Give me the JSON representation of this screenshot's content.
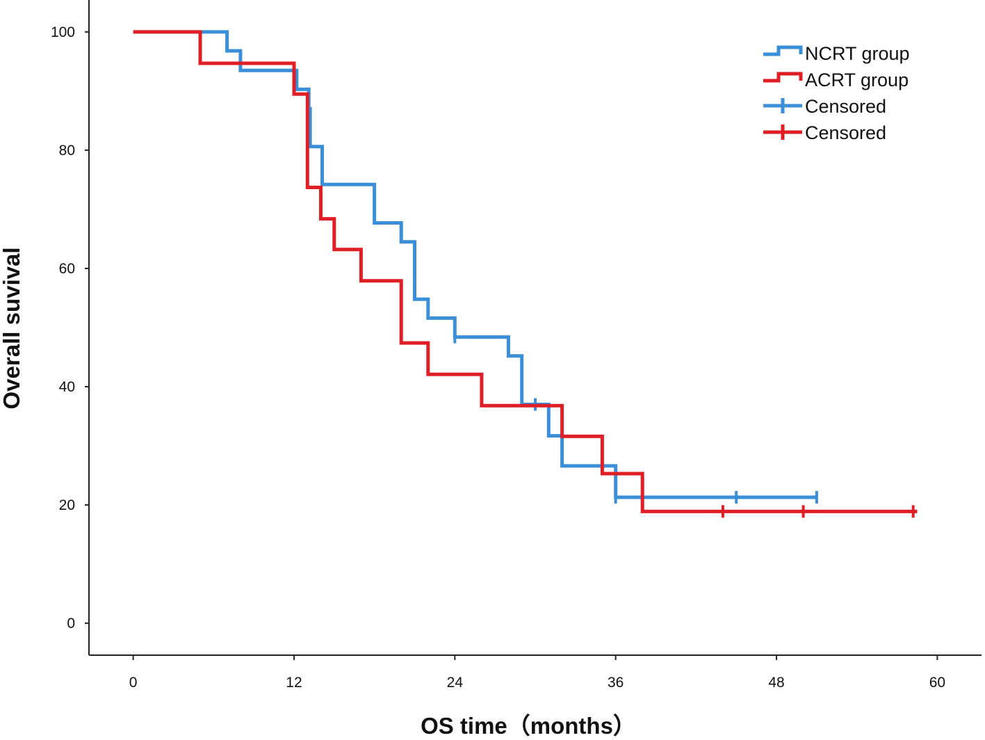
{
  "chart_data": {
    "type": "line",
    "subtype": "kaplan-meier-step",
    "xlabel": "OS time（months）",
    "ylabel": "Overall suvival",
    "xlim": [
      -3.3,
      63.3
    ],
    "ylim": [
      -5.4,
      105.4
    ],
    "x_ticks": [
      0,
      12,
      24,
      36,
      48,
      60
    ],
    "y_ticks": [
      0,
      20,
      40,
      60,
      80,
      100
    ],
    "legend_position": "top-right",
    "series": [
      {
        "name": "NCRT group",
        "color": "#3a8fd8",
        "steps": [
          [
            0,
            100
          ],
          [
            7,
            100
          ],
          [
            7,
            96.8
          ],
          [
            8,
            96.8
          ],
          [
            8,
            93.5
          ],
          [
            12.2,
            93.5
          ],
          [
            12.2,
            90.3
          ],
          [
            13.1,
            90.3
          ],
          [
            13.1,
            87
          ],
          [
            13.2,
            87
          ],
          [
            13.2,
            80.6
          ],
          [
            14.1,
            80.6
          ],
          [
            14.1,
            74.2
          ],
          [
            18,
            74.2
          ],
          [
            18,
            67.7
          ],
          [
            20,
            67.7
          ],
          [
            20,
            64.5
          ],
          [
            21,
            64.5
          ],
          [
            21,
            54.8
          ],
          [
            22,
            54.8
          ],
          [
            22,
            51.6
          ],
          [
            24,
            51.6
          ],
          [
            24,
            48.4
          ],
          [
            28,
            48.4
          ],
          [
            28,
            45.2
          ],
          [
            29,
            45.2
          ],
          [
            29,
            37
          ],
          [
            31,
            37
          ],
          [
            31,
            31.7
          ],
          [
            32,
            31.7
          ],
          [
            32,
            26.6
          ],
          [
            36,
            26.6
          ],
          [
            36,
            21.3
          ],
          [
            51,
            21.3
          ]
        ],
        "censored": [
          [
            24,
            48.4
          ],
          [
            30,
            37
          ],
          [
            36,
            21.3
          ],
          [
            45,
            21.3
          ],
          [
            51,
            21.3
          ]
        ]
      },
      {
        "name": "ACRT group",
        "color": "#e01e25",
        "steps": [
          [
            0,
            100
          ],
          [
            5,
            100
          ],
          [
            5,
            94.7
          ],
          [
            12,
            94.7
          ],
          [
            12,
            89.5
          ],
          [
            13,
            89.5
          ],
          [
            13,
            73.7
          ],
          [
            14,
            73.7
          ],
          [
            14,
            68.4
          ],
          [
            15,
            68.4
          ],
          [
            15,
            63.2
          ],
          [
            17,
            63.2
          ],
          [
            17,
            57.9
          ],
          [
            20,
            57.9
          ],
          [
            20,
            47.4
          ],
          [
            22,
            47.4
          ],
          [
            22,
            42.1
          ],
          [
            26,
            42.1
          ],
          [
            26,
            36.8
          ],
          [
            32,
            36.8
          ],
          [
            32,
            31.6
          ],
          [
            35,
            31.6
          ],
          [
            35,
            25.3
          ],
          [
            38,
            25.3
          ],
          [
            38,
            18.9
          ],
          [
            58.5,
            18.9
          ]
        ],
        "censored": [
          [
            44,
            18.9
          ],
          [
            50,
            18.9
          ],
          [
            58.2,
            18.9
          ]
        ]
      }
    ],
    "legend": [
      {
        "label": "NCRT group",
        "color": "#3a8fd8",
        "kind": "line"
      },
      {
        "label": "ACRT group",
        "color": "#e01e25",
        "kind": "line"
      },
      {
        "label": "Censored",
        "color": "#3a8fd8",
        "kind": "censor"
      },
      {
        "label": "Censored",
        "color": "#e01e25",
        "kind": "censor"
      }
    ]
  }
}
